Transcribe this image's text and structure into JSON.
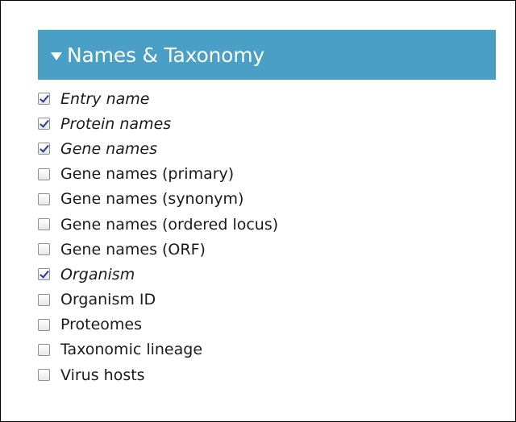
{
  "panel": {
    "title": "Names & Taxonomy",
    "header_color": "#4a9fc7",
    "expanded": true,
    "icon": "caret-down-icon"
  },
  "options": [
    {
      "label": "Entry name",
      "checked": true
    },
    {
      "label": "Protein names",
      "checked": true
    },
    {
      "label": "Gene names",
      "checked": true
    },
    {
      "label": "Gene names (primary)",
      "checked": false
    },
    {
      "label": "Gene names (synonym)",
      "checked": false
    },
    {
      "label": "Gene names (ordered locus)",
      "checked": false
    },
    {
      "label": "Gene names (ORF)",
      "checked": false
    },
    {
      "label": "Organism",
      "checked": true
    },
    {
      "label": "Organism ID",
      "checked": false
    },
    {
      "label": "Proteomes",
      "checked": false
    },
    {
      "label": "Taxonomic lineage",
      "checked": false
    },
    {
      "label": "Virus hosts",
      "checked": false
    }
  ]
}
